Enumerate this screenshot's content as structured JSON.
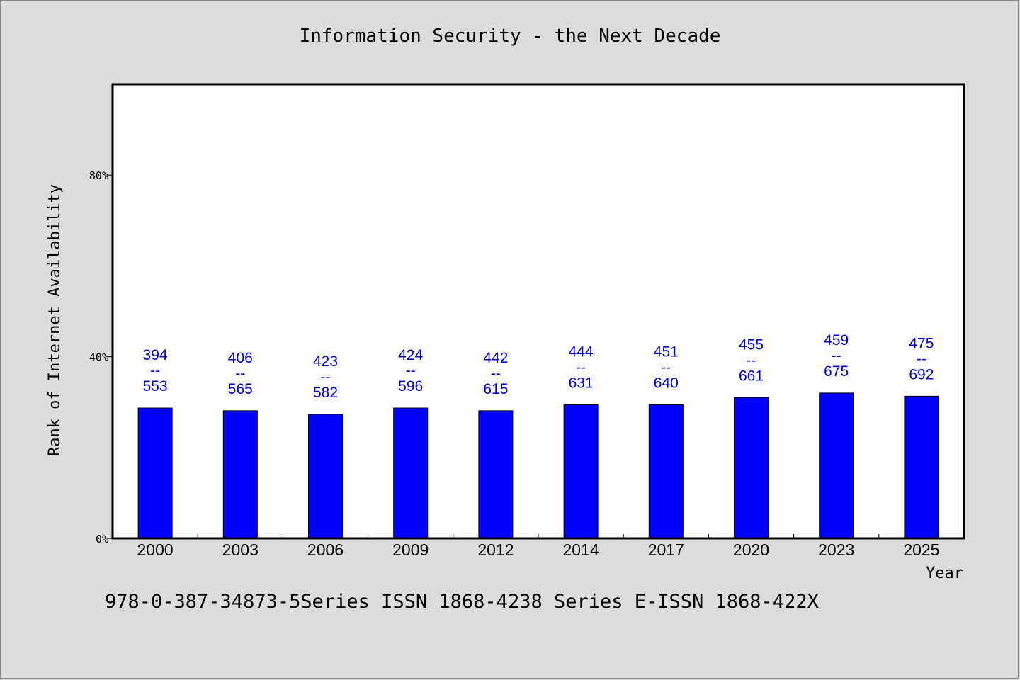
{
  "chart_data": {
    "type": "bar",
    "title": "Information Security - the Next Decade",
    "xlabel": "Year",
    "ylabel": "Rank of Internet Availability",
    "ylim": [
      0,
      100
    ],
    "yticks": [
      {
        "value": 0,
        "label": "0%"
      },
      {
        "value": 40,
        "label": "40%"
      },
      {
        "value": 80,
        "label": "80%"
      }
    ],
    "categories": [
      "2000",
      "2003",
      "2006",
      "2009",
      "2012",
      "2014",
      "2017",
      "2020",
      "2023",
      "2025"
    ],
    "values": [
      28.7,
      28.1,
      27.3,
      28.7,
      28.1,
      29.4,
      29.4,
      31.0,
      32.0,
      31.3
    ],
    "bar_labels": [
      {
        "top": "394",
        "sep": "--",
        "bottom": "553"
      },
      {
        "top": "406",
        "sep": "--",
        "bottom": "565"
      },
      {
        "top": "423",
        "sep": "--",
        "bottom": "582"
      },
      {
        "top": "424",
        "sep": "--",
        "bottom": "596"
      },
      {
        "top": "442",
        "sep": "--",
        "bottom": "615"
      },
      {
        "top": "444",
        "sep": "--",
        "bottom": "631"
      },
      {
        "top": "451",
        "sep": "--",
        "bottom": "640"
      },
      {
        "top": "455",
        "sep": "--",
        "bottom": "661"
      },
      {
        "top": "459",
        "sep": "--",
        "bottom": "675"
      },
      {
        "top": "475",
        "sep": "--",
        "bottom": "692"
      }
    ],
    "bar_color": "#0000ff",
    "label_color": "#0000cc",
    "grid": false,
    "legend": "none"
  },
  "footer": "978-0-387-34873-5Series ISSN 1868-4238 Series E-ISSN 1868-422X"
}
